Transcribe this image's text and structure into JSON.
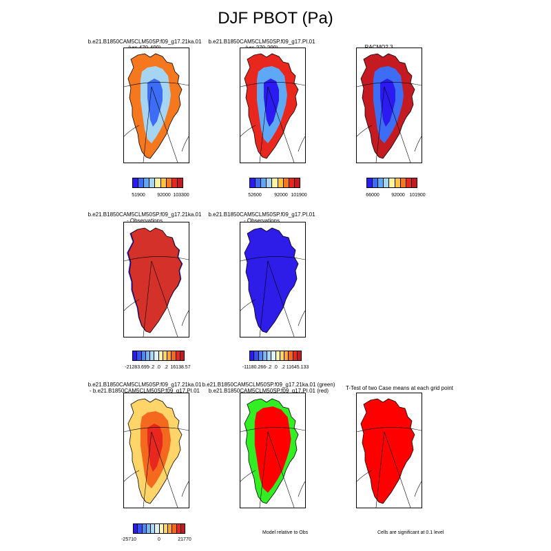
{
  "figure": {
    "title": "DJF PBOT (Pa)"
  },
  "panels": {
    "p1": {
      "line1": "b.e21.B1850CAM5CLM50SP.f09_g17.21ka.01",
      "line2": "(yrs 470-499)"
    },
    "p2": {
      "line1": "b.e21.B1850CAM5CLM50SP.f09_g17.PI.01",
      "line2": "(yrs 270-299)"
    },
    "p3": {
      "line1": "RACMO2.3"
    },
    "p4": {
      "line1": "b.e21.B1850CAM5CLM50SP.f09_g17.21ka.01",
      "line2": "- Observations"
    },
    "p5": {
      "line1": "b.e21.B1850CAM5CLM50SP.f09_g17.PI.01",
      "line2": "- Observations"
    },
    "p6": {
      "line1": "b.e21.B1850CAM5CLM50SP.f09_g17.21ka.01",
      "line2": "- b.e21.B1850CAM5CLM50SP.f09_g17.PI.01"
    },
    "p7": {
      "line1": "b.e21.B1850CAM5CLM50SP.f09_g17.21ka.01 (green)",
      "line2": "b.e21.B1850CAM5CLM50SP.f09_g17.PI.01 (red)"
    },
    "p8": {
      "line1": "T-Test of two Case means at each grid point"
    }
  },
  "colorbars": {
    "cb1": {
      "labels": [
        "51900",
        "92000",
        "103300"
      ]
    },
    "cb2": {
      "labels": [
        "52600",
        "92000",
        "101900"
      ]
    },
    "cb3": {
      "labels": [
        "66000",
        "92000",
        "101900"
      ]
    },
    "cb4": {
      "labels": [
        "-21283.695",
        "-.2",
        ".0",
        ".2",
        "16138.57"
      ]
    },
    "cb5": {
      "labels": [
        "-11180.266",
        "-.2",
        ".0",
        ".2",
        "11645.133"
      ]
    },
    "cb6": {
      "labels": [
        "-25710",
        "0",
        "21770"
      ]
    }
  },
  "notes": {
    "model_relative": "Model relative to Obs",
    "significance": "Cells are significant at 0.1 level"
  },
  "colors": {
    "abs_palette": [
      "#2b1bf0",
      "#3d6cf5",
      "#5fa8f5",
      "#a6d5f2",
      "#fff3a0",
      "#ffc23f",
      "#f5781f",
      "#e8281e",
      "#c41b22"
    ],
    "diff_palette": [
      "#2b1bf0",
      "#3650f5",
      "#4a8af5",
      "#7ab6f5",
      "#a8d8f2",
      "#ddf0f7",
      "#fff3b0",
      "#ffd56a",
      "#ffa53a",
      "#f5691f",
      "#e8281e",
      "#c41b22"
    ],
    "bias_warm": "#d3312a",
    "bias_cool": "#2e1ce8",
    "ttest_fill": "#ff0000",
    "green": "#33ee22"
  }
}
